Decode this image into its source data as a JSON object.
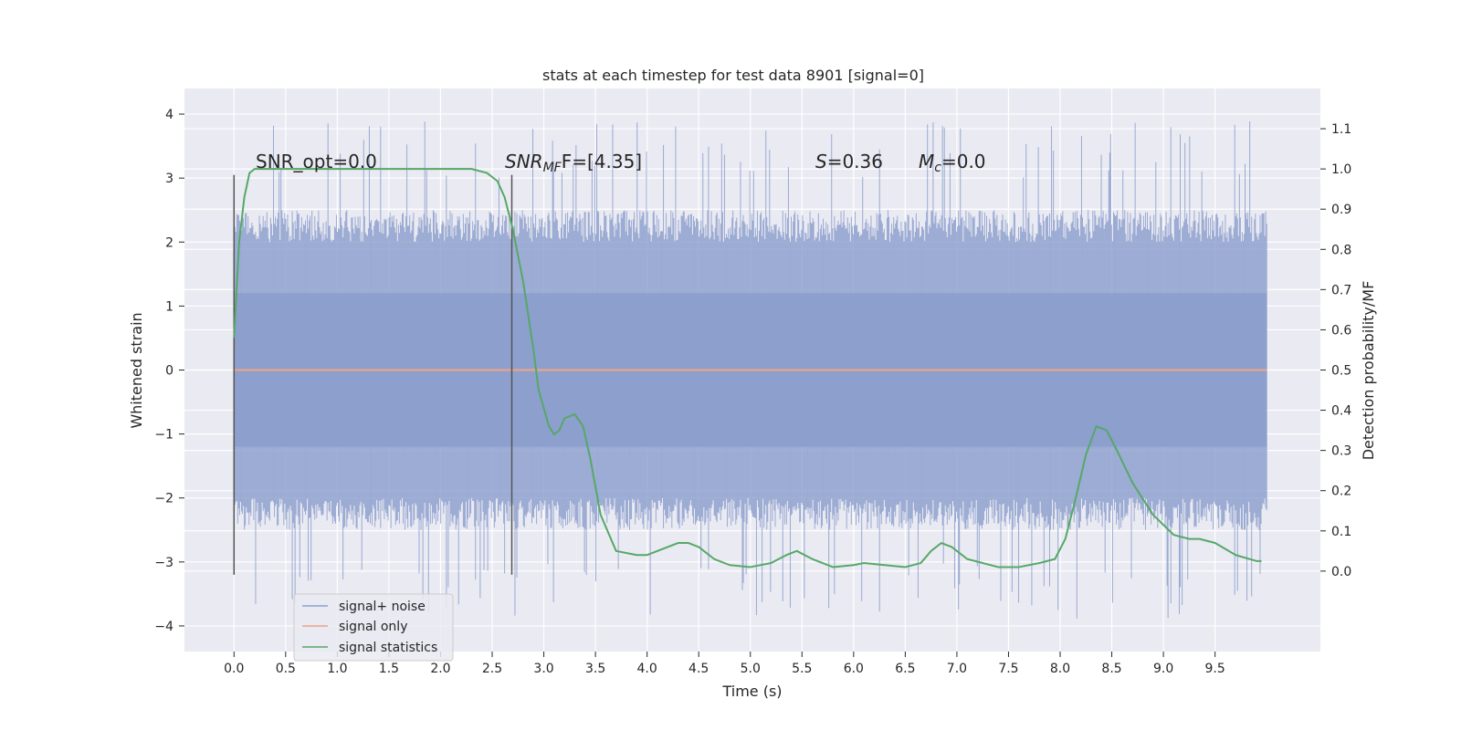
{
  "chart_data": {
    "type": "line",
    "title": "stats at each timestep for test data 8901 [signal=0]",
    "xlabel": "Time (s)",
    "ylabel_left": "Whitened strain",
    "ylabel_right": "Detection probability/MF",
    "xlim": [
      -0.48,
      10.52
    ],
    "ylim_left": [
      -4.4,
      4.4
    ],
    "ylim_right": [
      -0.2,
      1.2
    ],
    "grid": true,
    "legend_position": "lower-left",
    "x_ticks": [
      0.0,
      0.5,
      1.0,
      1.5,
      2.0,
      2.5,
      3.0,
      3.5,
      4.0,
      4.5,
      5.0,
      5.5,
      6.0,
      6.5,
      7.0,
      7.5,
      8.0,
      8.5,
      9.0,
      9.5
    ],
    "x_tick_labels": [
      "0.0",
      "0.5",
      "1.0",
      "1.5",
      "2.0",
      "2.5",
      "3.0",
      "3.5",
      "4.0",
      "4.5",
      "5.0",
      "5.5",
      "6.0",
      "6.5",
      "7.0",
      "7.5",
      "8.0",
      "8.5",
      "9.0",
      "9.5"
    ],
    "y_left_ticks": [
      -4,
      -3,
      -2,
      -1,
      0,
      1,
      2,
      3,
      4
    ],
    "y_left_tick_labels": [
      "−4",
      "−3",
      "−2",
      "−1",
      "0",
      "1",
      "2",
      "3",
      "4"
    ],
    "y_right_ticks": [
      0.0,
      0.1,
      0.2,
      0.3,
      0.4,
      0.5,
      0.6,
      0.7,
      0.8,
      0.9,
      1.0,
      1.1
    ],
    "y_right_tick_labels": [
      "0.0",
      "0.1",
      "0.2",
      "0.3",
      "0.4",
      "0.5",
      "0.6",
      "0.7",
      "0.8",
      "0.9",
      "1.0",
      "1.1"
    ],
    "annotations": {
      "snr_opt": "SNR_opt=0.0",
      "snr_mf_main": "SNR",
      "snr_mf_sub": "MF",
      "snr_mf_value": "F=[4.35]",
      "s_var": "S",
      "s_value": "=0.36",
      "mc_var": "M",
      "mc_sub": "c",
      "mc_value": "=0.0"
    },
    "window_markers": {
      "x": [
        0.0,
        2.69
      ],
      "y_range": [
        -3.2,
        3.05
      ]
    },
    "noise_series": {
      "name": "signal+ noise",
      "color": "#8c9fcc",
      "x_range": [
        0.0,
        10.0
      ],
      "band": 1.2,
      "typical_peak": [
        2.0,
        2.5
      ],
      "extreme_peak": [
        3.0,
        3.9
      ]
    },
    "series": [
      {
        "name": "signal only",
        "color": "#e8a58a",
        "axis": "left",
        "x": [
          0.0,
          10.0
        ],
        "values": [
          0.0,
          0.0
        ]
      },
      {
        "name": "signal statistics",
        "color": "#55a868",
        "axis": "right",
        "x": [
          0.0,
          0.05,
          0.1,
          0.15,
          0.2,
          0.3,
          0.5,
          1.0,
          1.5,
          2.0,
          2.3,
          2.45,
          2.55,
          2.62,
          2.7,
          2.8,
          2.9,
          2.95,
          3.05,
          3.1,
          3.15,
          3.2,
          3.3,
          3.38,
          3.45,
          3.55,
          3.7,
          3.9,
          4.0,
          4.1,
          4.2,
          4.3,
          4.4,
          4.5,
          4.65,
          4.8,
          5.0,
          5.2,
          5.35,
          5.45,
          5.6,
          5.8,
          6.0,
          6.1,
          6.3,
          6.5,
          6.65,
          6.75,
          6.85,
          6.95,
          7.1,
          7.4,
          7.6,
          7.8,
          7.95,
          8.05,
          8.15,
          8.25,
          8.35,
          8.45,
          8.55,
          8.7,
          8.9,
          9.1,
          9.25,
          9.35,
          9.5,
          9.7,
          9.9,
          9.95
        ],
        "values": [
          0.58,
          0.82,
          0.93,
          0.99,
          1.0,
          1.0,
          1.0,
          1.0,
          1.0,
          1.0,
          1.0,
          0.99,
          0.97,
          0.93,
          0.85,
          0.72,
          0.55,
          0.45,
          0.36,
          0.34,
          0.35,
          0.38,
          0.39,
          0.36,
          0.28,
          0.14,
          0.05,
          0.04,
          0.04,
          0.05,
          0.06,
          0.07,
          0.07,
          0.06,
          0.03,
          0.015,
          0.01,
          0.02,
          0.04,
          0.05,
          0.03,
          0.01,
          0.015,
          0.02,
          0.015,
          0.01,
          0.02,
          0.05,
          0.07,
          0.06,
          0.03,
          0.01,
          0.01,
          0.02,
          0.03,
          0.08,
          0.18,
          0.29,
          0.36,
          0.35,
          0.3,
          0.22,
          0.14,
          0.09,
          0.08,
          0.08,
          0.07,
          0.04,
          0.025,
          0.025
        ]
      }
    ]
  },
  "legend": {
    "items": [
      {
        "label": "signal+ noise",
        "color": "#8c9fcc"
      },
      {
        "label": "signal only",
        "color": "#e8a58a"
      },
      {
        "label": "signal statistics",
        "color": "#55a868"
      }
    ]
  }
}
